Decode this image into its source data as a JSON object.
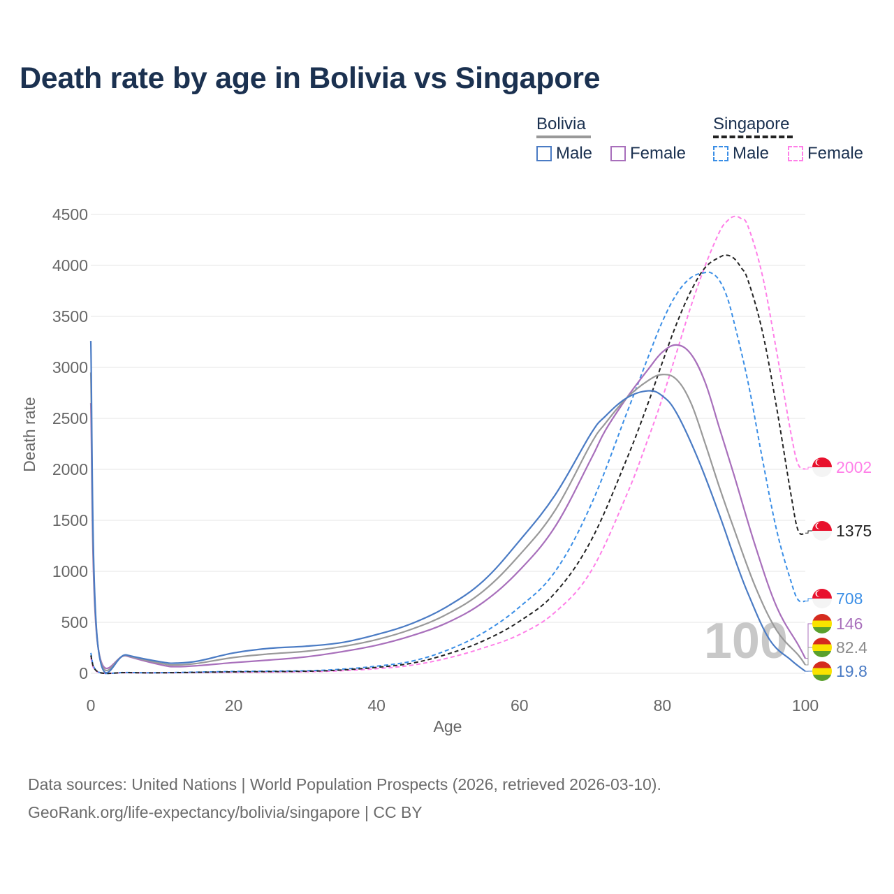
{
  "title": "Death rate by age in Bolivia vs Singapore",
  "legend": {
    "groups": [
      {
        "name": "Bolivia",
        "items": [
          "Male",
          "Female"
        ]
      },
      {
        "name": "Singapore",
        "items": [
          "Male",
          "Female"
        ]
      }
    ]
  },
  "colors": {
    "bolivia_male": "#4a7bc4",
    "bolivia_female": "#a86fbb",
    "bolivia_total": "#999999",
    "singapore_male": "#3a8ee6",
    "singapore_female": "#ff7fe8",
    "singapore_total": "#222222",
    "grid": "#e6e6e6",
    "axis_text": "#666666",
    "title": "#1b3150"
  },
  "chart_data": {
    "type": "line",
    "title": "Death rate by age in Bolivia vs Singapore",
    "xlabel": "Age",
    "ylabel": "Death rate",
    "xlim": [
      0,
      100
    ],
    "ylim": [
      0,
      4500
    ],
    "xticks": [
      0,
      20,
      40,
      60,
      80,
      100
    ],
    "yticks": [
      0,
      500,
      1000,
      1500,
      2000,
      2500,
      3000,
      3500,
      4000,
      4500
    ],
    "watermark": "100",
    "series": [
      {
        "name": "Bolivia Male",
        "key": "bolivia_male",
        "dashed": false,
        "x": [
          0,
          1,
          5,
          10,
          12,
          15,
          20,
          25,
          30,
          35,
          40,
          45,
          50,
          55,
          60,
          65,
          70,
          72,
          75,
          78,
          80,
          82,
          85,
          88,
          90,
          92,
          95,
          98,
          100
        ],
        "y": [
          3260,
          270,
          180,
          110,
          100,
          120,
          200,
          245,
          265,
          300,
          380,
          490,
          660,
          910,
          1300,
          1750,
          2350,
          2520,
          2700,
          2770,
          2720,
          2550,
          2100,
          1550,
          1150,
          780,
          330,
          130,
          20
        ]
      },
      {
        "name": "Bolivia Female",
        "key": "bolivia_female",
        "dashed": false,
        "x": [
          0,
          1,
          5,
          10,
          12,
          15,
          20,
          25,
          30,
          35,
          40,
          45,
          50,
          55,
          60,
          65,
          70,
          72,
          75,
          78,
          80,
          82,
          84,
          86,
          88,
          90,
          93,
          96,
          99,
          100
        ],
        "y": [
          2650,
          265,
          170,
          80,
          65,
          75,
          105,
          130,
          160,
          210,
          275,
          370,
          500,
          700,
          1010,
          1440,
          2100,
          2380,
          2700,
          2980,
          3150,
          3220,
          3130,
          2850,
          2400,
          1950,
          1250,
          650,
          280,
          146
        ]
      },
      {
        "name": "Bolivia Total",
        "key": "bolivia_total",
        "dashed": false,
        "x": [
          0,
          1,
          5,
          10,
          12,
          15,
          20,
          25,
          30,
          35,
          40,
          45,
          50,
          55,
          60,
          65,
          70,
          72,
          75,
          78,
          80,
          82,
          84,
          86,
          88,
          90,
          93,
          96,
          99,
          100
        ],
        "y": [
          2950,
          268,
          175,
          95,
          82,
          98,
          155,
          190,
          215,
          260,
          330,
          435,
          585,
          810,
          1160,
          1600,
          2250,
          2450,
          2700,
          2870,
          2930,
          2880,
          2650,
          2250,
          1820,
          1420,
          850,
          420,
          180,
          82.4
        ]
      },
      {
        "name": "Singapore Male",
        "key": "singapore_male",
        "dashed": true,
        "x": [
          0,
          1,
          5,
          10,
          20,
          30,
          35,
          40,
          45,
          50,
          55,
          60,
          65,
          70,
          75,
          78,
          80,
          82,
          84,
          86,
          87,
          88,
          89,
          90,
          92,
          94,
          96,
          98,
          99,
          100
        ],
        "y": [
          200,
          15,
          8,
          6,
          18,
          25,
          40,
          70,
          120,
          230,
          400,
          650,
          1000,
          1650,
          2550,
          3100,
          3450,
          3720,
          3880,
          3930,
          3920,
          3850,
          3700,
          3450,
          2850,
          2100,
          1400,
          900,
          720,
          708
        ]
      },
      {
        "name": "Singapore Female",
        "key": "singapore_female",
        "dashed": true,
        "x": [
          0,
          1,
          5,
          10,
          20,
          30,
          35,
          40,
          45,
          50,
          55,
          60,
          65,
          70,
          75,
          78,
          80,
          82,
          84,
          86,
          88,
          89,
          90,
          91,
          92,
          94,
          96,
          98,
          99,
          100
        ],
        "y": [
          150,
          12,
          6,
          5,
          10,
          15,
          25,
          45,
          80,
          150,
          250,
          380,
          600,
          1000,
          1750,
          2300,
          2700,
          3150,
          3600,
          4000,
          4330,
          4430,
          4480,
          4460,
          4380,
          3900,
          3150,
          2350,
          2050,
          2002
        ]
      },
      {
        "name": "Singapore Total",
        "key": "singapore_total",
        "dashed": true,
        "x": [
          0,
          1,
          5,
          10,
          20,
          30,
          35,
          40,
          45,
          50,
          55,
          60,
          65,
          70,
          75,
          78,
          80,
          82,
          84,
          86,
          88,
          89,
          90,
          91,
          92,
          94,
          96,
          98,
          99,
          100
        ],
        "y": [
          175,
          14,
          7,
          5,
          14,
          20,
          32,
          58,
          100,
          190,
          320,
          510,
          790,
          1300,
          2100,
          2650,
          3050,
          3430,
          3750,
          3980,
          4080,
          4100,
          4070,
          3980,
          3850,
          3350,
          2600,
          1750,
          1400,
          1375
        ]
      }
    ],
    "end_labels": [
      {
        "text": "2002",
        "key": "singapore_female",
        "flag": "singapore",
        "value": 2002
      },
      {
        "text": "1375",
        "key": "singapore_total",
        "flag": "singapore",
        "value": 1375
      },
      {
        "text": "708",
        "key": "singapore_male",
        "flag": "singapore",
        "value": 708
      },
      {
        "text": "146",
        "key": "bolivia_female",
        "flag": "bolivia",
        "value": 146
      },
      {
        "text": "82.4",
        "key": "bolivia_total",
        "flag": "bolivia",
        "value": 82.4
      },
      {
        "text": "19.8",
        "key": "bolivia_male",
        "flag": "bolivia",
        "value": 19.8
      }
    ]
  },
  "footer": {
    "line1": "Data sources: United Nations | World Population Prospects (2026, retrieved 2026-03-10).",
    "line2": "GeoRank.org/life-expectancy/bolivia/singapore | CC BY"
  }
}
